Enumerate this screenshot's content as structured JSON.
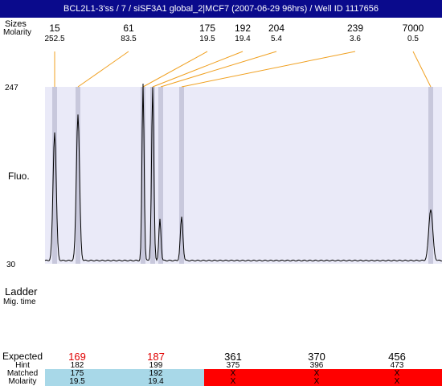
{
  "title": "BCL2L1-3'ss / 7 / siSF3A1 global_2|MCF7 (2007-06-29 96hrs) / Well ID 1117656",
  "labels": {
    "sizes": "Sizes",
    "molarity": "Molarity",
    "fluo": "Fluo.",
    "ladder": "Ladder",
    "mig_time": "Mig. time",
    "y_top": "247",
    "y_bottom": "30"
  },
  "colors": {
    "title_bg": "#0a0a8c",
    "plot_bg": "#eaeaf8",
    "band": "#c8c8dc",
    "connector": "#f0a020",
    "matched": "#a8d8e8",
    "unmatched": "#ff0000",
    "expected_highlight": "#e00000"
  },
  "chart_data": {
    "type": "line",
    "ylabel": "Fluo.",
    "ylim": [
      30,
      247
    ],
    "peaks": [
      {
        "size": "15",
        "molarity": "252.5"
      },
      {
        "size": "61",
        "molarity": "83.5"
      },
      {
        "size": "175",
        "molarity": "19.5"
      },
      {
        "size": "192",
        "molarity": "19.4"
      },
      {
        "size": "204",
        "molarity": "5.4"
      },
      {
        "size": "239",
        "molarity": "3.6"
      },
      {
        "size": "7000",
        "molarity": "0.5"
      }
    ]
  },
  "table": {
    "headers": {
      "expected": "Expected",
      "hint": "Hint",
      "matched": "Matched",
      "molarity": "Molarity"
    },
    "columns": [
      {
        "expected": "169",
        "hint": "182",
        "matched": "175",
        "molarity": "19.5",
        "status": "matched",
        "highlight": true
      },
      {
        "expected": "187",
        "hint": "199",
        "matched": "192",
        "molarity": "19.4",
        "status": "matched",
        "highlight": true
      },
      {
        "expected": "361",
        "hint": "375",
        "matched": "X",
        "molarity": "X",
        "status": "unmatched",
        "highlight": false
      },
      {
        "expected": "370",
        "hint": "396",
        "matched": "X",
        "molarity": "X",
        "status": "unmatched",
        "highlight": false
      },
      {
        "expected": "456",
        "hint": "473",
        "matched": "X",
        "molarity": "X",
        "status": "unmatched",
        "highlight": false
      }
    ]
  }
}
